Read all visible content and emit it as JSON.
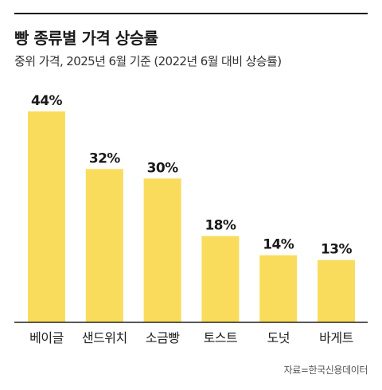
{
  "title": "빵 종류별 가격 상승률",
  "subtitle": "중위 가격, 2025년 6월 기준 (2022년 6월 대비 상승률)",
  "source": "자료=한국신용데이터",
  "colors": {
    "bar": "#f9dc5c",
    "baseline": "#222222",
    "rule": "#111111"
  },
  "chart_data": {
    "type": "bar",
    "title": "빵 종류별 가격 상승률",
    "subtitle": "중위 가격, 2025년 6월 기준 (2022년 6월 대비 상승률)",
    "categories": [
      "베이글",
      "샌드위치",
      "소금빵",
      "토스트",
      "도넛",
      "바게트"
    ],
    "values": [
      44,
      32,
      30,
      18,
      14,
      13
    ],
    "value_labels": [
      "44%",
      "32%",
      "30%",
      "18%",
      "14%",
      "13%"
    ],
    "unit": "%",
    "ylim": [
      0,
      44
    ],
    "grid": false,
    "legend": "none"
  }
}
